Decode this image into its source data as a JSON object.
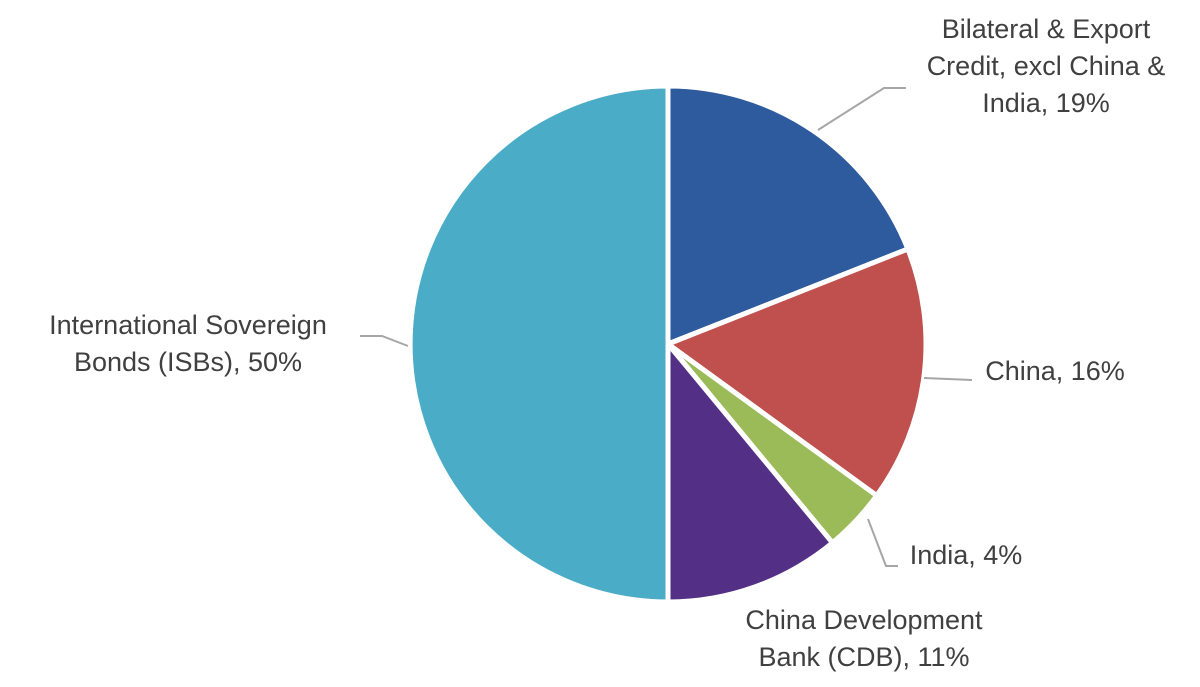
{
  "chart_data": {
    "type": "pie",
    "title": "",
    "start_angle_deg": 0,
    "direction": "clockwise",
    "slices": [
      {
        "label": "Bilateral & Export Credit, excl China & India",
        "value": 19,
        "display": "19%",
        "color": "#2e5a9e",
        "label_lines": [
          "Bilateral & Export",
          "Credit, excl China &",
          "India, 19%"
        ]
      },
      {
        "label": "China",
        "value": 16,
        "display": "16%",
        "color": "#c0504d",
        "label_lines": [
          "China, 16%"
        ]
      },
      {
        "label": "India",
        "value": 4,
        "display": "4%",
        "color": "#9bbb59",
        "label_lines": [
          "India, 4%"
        ]
      },
      {
        "label": "China Development Bank (CDB)",
        "value": 11,
        "display": "11%",
        "color": "#533085",
        "label_lines": [
          "China Development",
          "Bank (CDB), 11%"
        ]
      },
      {
        "label": "International Sovereign Bonds (ISBs)",
        "value": 50,
        "display": "50%",
        "color": "#4aacc6",
        "label_lines": [
          "International Sovereign",
          "Bonds (ISBs), 50%"
        ]
      }
    ]
  }
}
